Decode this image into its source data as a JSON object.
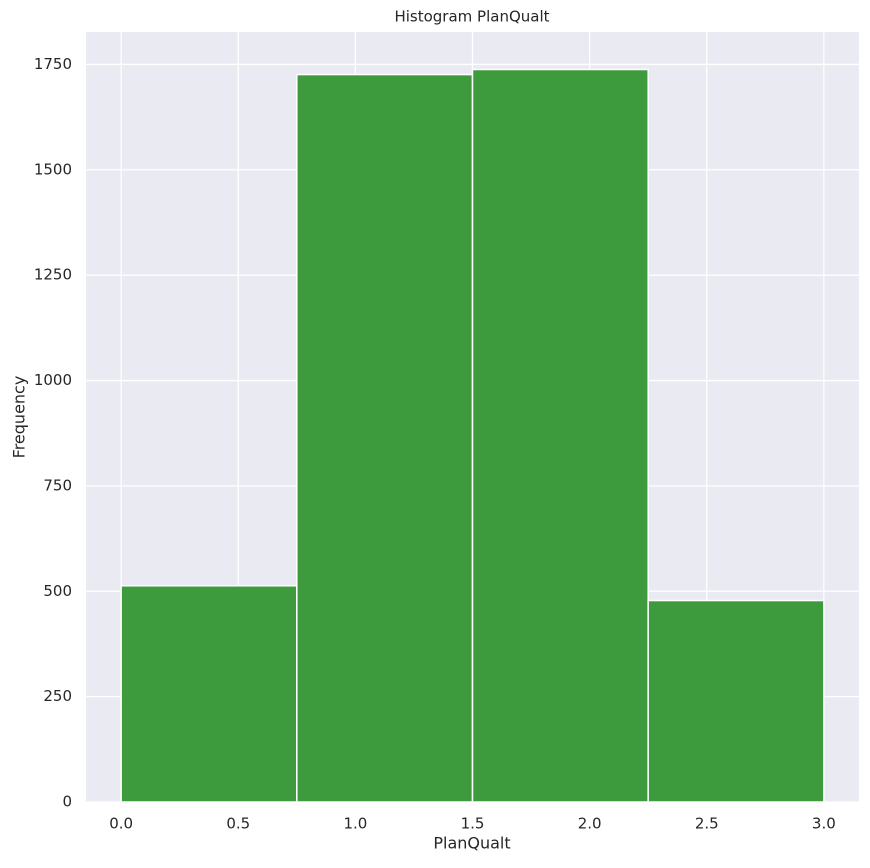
{
  "chart_data": {
    "type": "histogram",
    "title": "Histogram PlanQualt",
    "xlabel": "PlanQualt",
    "ylabel": "Frequency",
    "bins": [
      0,
      0.75,
      1.5,
      2.25,
      3
    ],
    "counts": [
      513,
      1726,
      1738,
      478
    ],
    "color": "#3d9a3d",
    "xlim": [
      -0.15,
      3.15
    ],
    "ylim": [
      0,
      1827
    ],
    "xticks": [
      {
        "value": 0,
        "label": "0.0"
      },
      0.5,
      {
        "value": 1,
        "label": "1.0"
      },
      1.5,
      {
        "value": 2,
        "label": "2.0"
      },
      2.5,
      {
        "value": 3,
        "label": "3.0"
      }
    ],
    "yticks": [
      0,
      250,
      500,
      750,
      1000,
      1250,
      1500,
      1750
    ],
    "grid": true
  }
}
